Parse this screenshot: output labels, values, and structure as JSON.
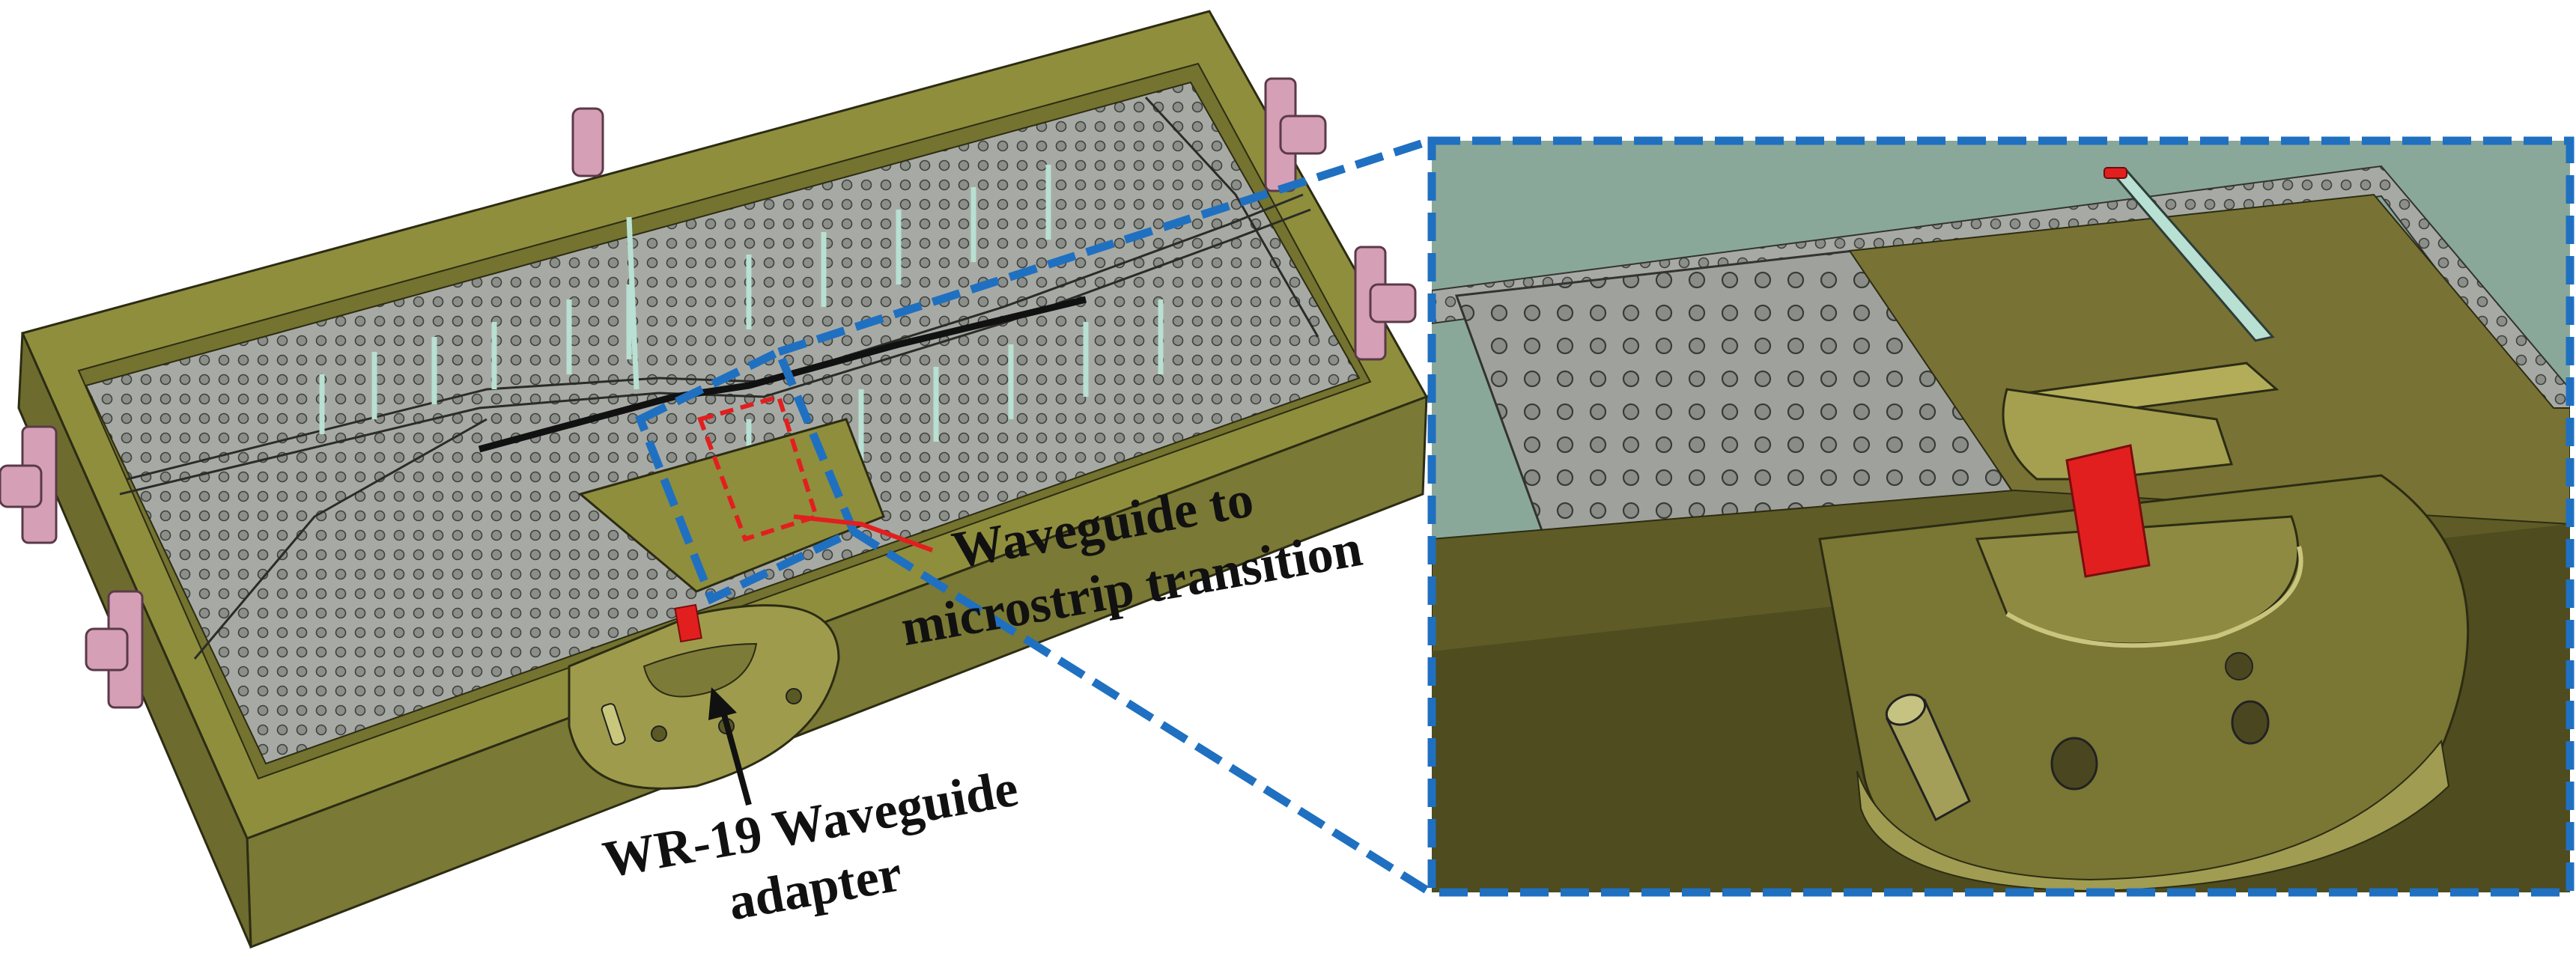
{
  "annotations": {
    "transition_label_line1": "Waveguide to",
    "transition_label_line2": "microstrip transition",
    "adapter_label_line1": "WR-19 Waveguide",
    "adapter_label_line2": "adapter"
  },
  "colors": {
    "housing_top": "#8f8e3d",
    "housing_front": "#7a7935",
    "housing_side": "#5f5f27",
    "substrate": "#a2a6a0",
    "connector": "#d59fb6",
    "probe_red": "#e21f1f",
    "callout_blue": "#1f70c1",
    "cavity_teal": "#8aa89a",
    "text": "#111111"
  }
}
